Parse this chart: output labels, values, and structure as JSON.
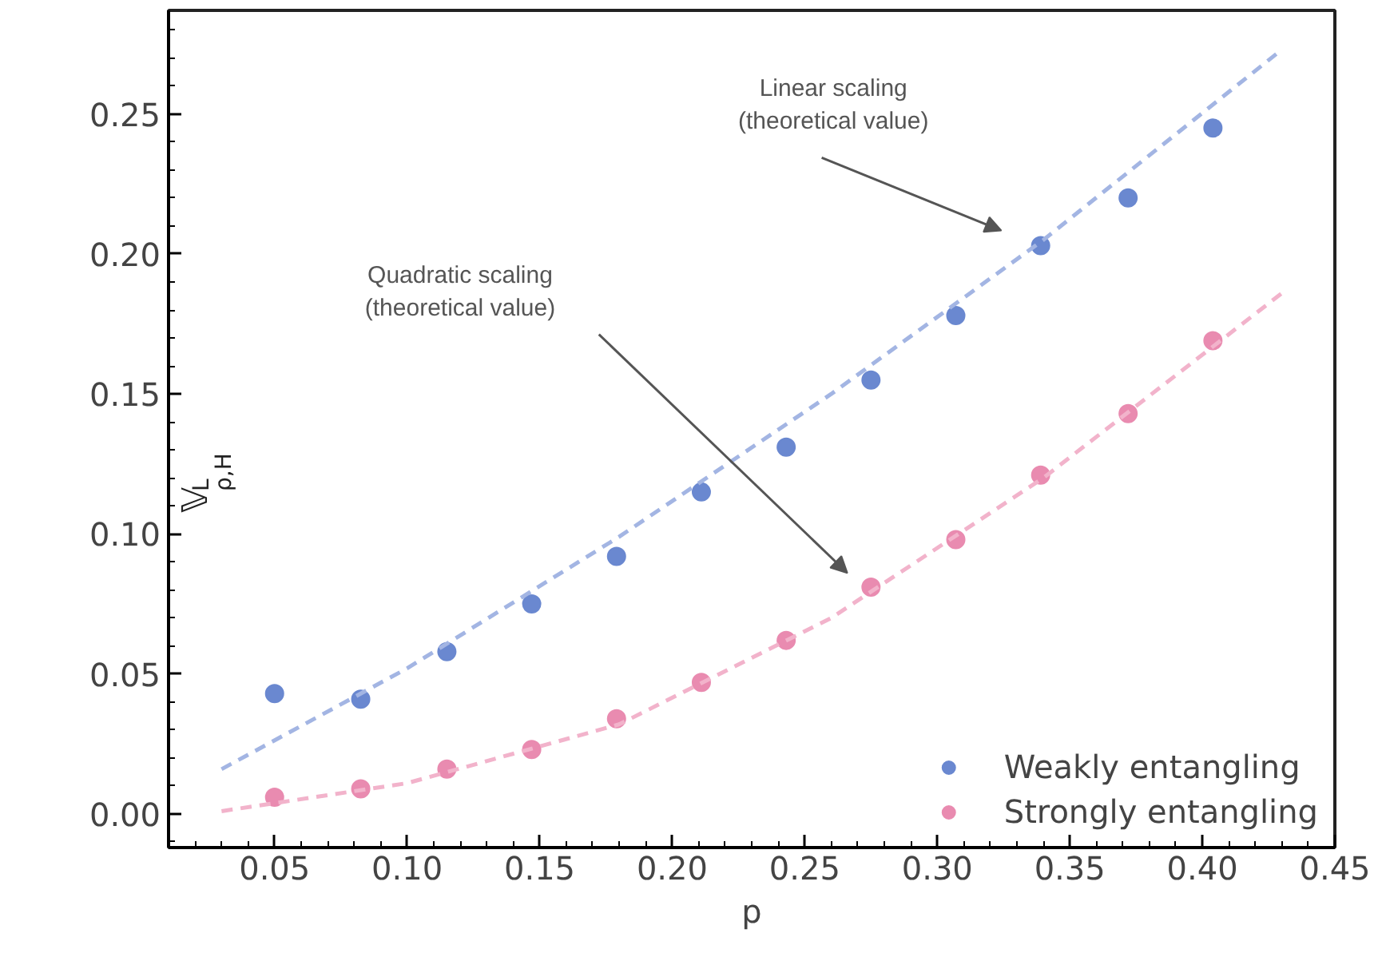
{
  "chart_data": {
    "type": "scatter",
    "xlabel": "p",
    "ylabel": "𝕍$^{L}$$_{ρ,H}$",
    "x": [
      0.05,
      0.0825,
      0.115,
      0.147,
      0.179,
      0.211,
      0.243,
      0.275,
      0.307,
      0.339,
      0.372,
      0.404
    ],
    "series": [
      {
        "name": "Weakly entangling",
        "color": "#6a88d0",
        "values": [
          0.043,
          0.041,
          0.058,
          0.075,
          0.092,
          0.115,
          0.131,
          0.155,
          0.178,
          0.203,
          0.22,
          0.245
        ]
      },
      {
        "name": "Strongly entangling",
        "color": "#e98bb0",
        "values": [
          0.006,
          0.009,
          0.016,
          0.023,
          0.034,
          0.047,
          0.062,
          0.081,
          0.098,
          0.121,
          0.143,
          0.169
        ]
      },
      {
        "type": "line",
        "line_style": "dashed",
        "marker": "none",
        "color": "#a3b5e3",
        "x": [
          0.03,
          0.1,
          0.18,
          0.26,
          0.34,
          0.43
        ],
        "values": [
          0.016,
          0.052,
          0.099,
          0.15,
          0.205,
          0.273
        ]
      },
      {
        "type": "line",
        "line_style": "dashed",
        "marker": "none",
        "color": "#f2b3cb",
        "x": [
          0.03,
          0.1,
          0.18,
          0.26,
          0.34,
          0.43
        ],
        "values": [
          0.001,
          0.011,
          0.032,
          0.07,
          0.12,
          0.186
        ]
      }
    ],
    "marker": "circle",
    "legend": "bottom right",
    "grid": false,
    "xlim": [
      0.01,
      0.45
    ],
    "xticks": [
      0.05,
      {
        "value": 0.1,
        "label": "0.10"
      },
      0.15,
      {
        "value": 0.2,
        "label": "0.20"
      },
      0.25,
      {
        "value": 0.3,
        "label": "0.30"
      },
      0.35,
      {
        "value": 0.4,
        "label": "0.40"
      },
      0.45
    ],
    "ylim": [
      -0.012,
      0.287
    ],
    "yticks": [
      {
        "value": 0,
        "label": "0.00"
      },
      0.05,
      {
        "value": 0.1,
        "label": "0.10"
      },
      0.15,
      {
        "value": 0.2,
        "label": "0.20"
      },
      0.25
    ],
    "annotations": [
      "Linear scaling\n(theoretical value)",
      "Quadratic scaling\n(theoretical value)"
    ]
  }
}
